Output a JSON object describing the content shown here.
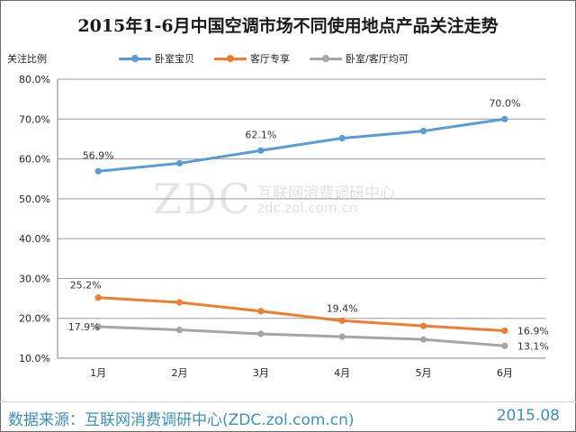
{
  "title": "2015年1-6月中国空调市场不同使用地点产品关注走势",
  "footer": {
    "source": "数据来源：互联网消费调研中心(ZDC.zol.com.cn)",
    "date": "2015.08"
  },
  "watermark": {
    "logo": "ZDC",
    "name": "互联网消费调研中心",
    "url": "zdc.zol.com.cn"
  },
  "colors": {
    "series_1": "#5b9bd5",
    "series_2": "#ed7d31",
    "series_3": "#a5a5a5",
    "footer_text": "#3d8fb8"
  },
  "chart_data": {
    "type": "line",
    "title": "2015年1-6月中国空调市场不同使用地点产品关注走势",
    "xlabel": "",
    "ylabel": "关注比例",
    "categories": [
      "1月",
      "2月",
      "3月",
      "4月",
      "5月",
      "6月"
    ],
    "ylim": [
      10,
      80
    ],
    "yticks": [
      10,
      20,
      30,
      40,
      50,
      60,
      70,
      80
    ],
    "ytick_labels": [
      "10.0%",
      "20.0%",
      "30.0%",
      "40.0%",
      "50.0%",
      "60.0%",
      "70.0%",
      "80.0%"
    ],
    "grid": true,
    "legend_position": "top",
    "series": [
      {
        "name": "卧室宝贝",
        "color": "#5b9bd5",
        "values": [
          56.9,
          58.9,
          62.1,
          65.2,
          67.0,
          70.0
        ],
        "labels": [
          {
            "index": 0,
            "text": "56.9%"
          },
          {
            "index": 2,
            "text": "62.1%"
          },
          {
            "index": 5,
            "text": "70.0%"
          }
        ]
      },
      {
        "name": "客厅专享",
        "color": "#ed7d31",
        "values": [
          25.2,
          24.0,
          21.8,
          19.4,
          18.1,
          16.9
        ],
        "labels": [
          {
            "index": 0,
            "text": "25.2%"
          },
          {
            "index": 3,
            "text": "19.4%"
          },
          {
            "index": 5,
            "text": "16.9%"
          }
        ]
      },
      {
        "name": "卧室/客厅均可",
        "color": "#a5a5a5",
        "values": [
          17.9,
          17.1,
          16.1,
          15.4,
          14.7,
          13.1
        ],
        "labels": [
          {
            "index": 0,
            "text": "17.9%"
          },
          {
            "index": 5,
            "text": "13.1%"
          }
        ]
      }
    ]
  }
}
